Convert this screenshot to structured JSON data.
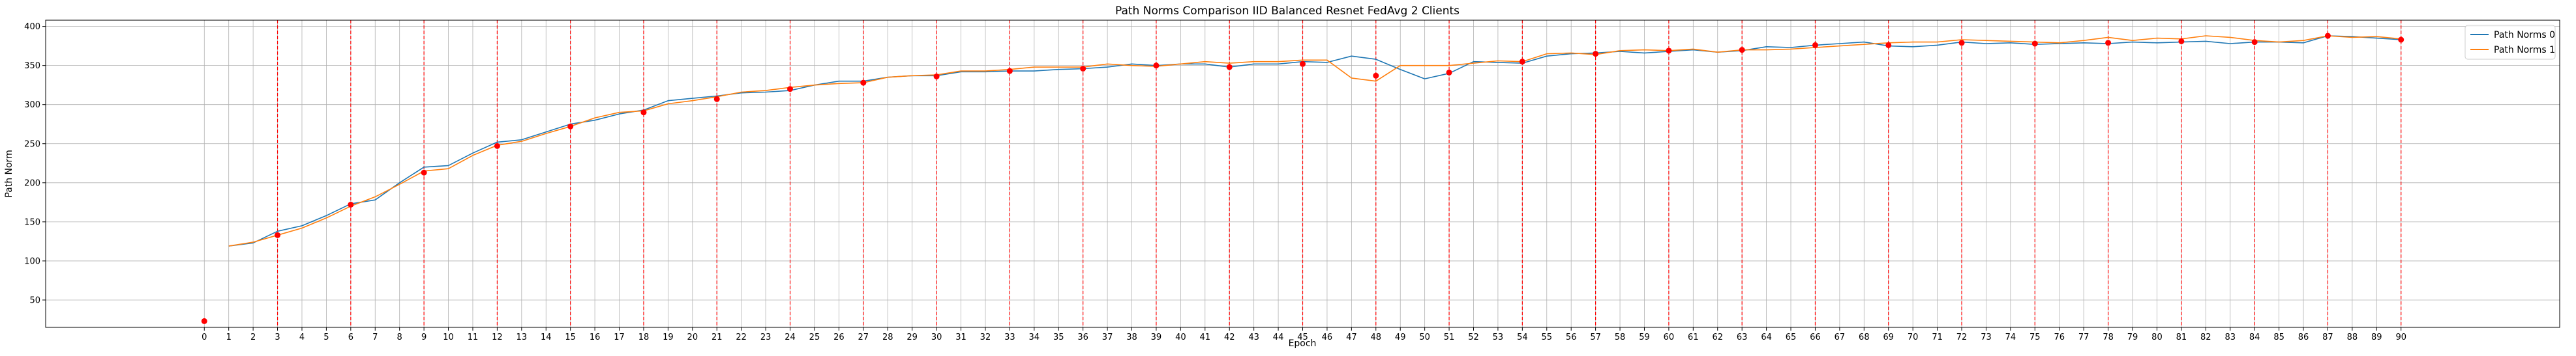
{
  "chart_data": {
    "type": "line",
    "title": "Path Norms Comparison IID Balanced Resnet FedAvg 2 Clients",
    "xlabel": "Epoch",
    "ylabel": "Path Norm",
    "xlim": [
      -6.5,
      96.5
    ],
    "ylim": [
      15,
      408
    ],
    "xticks": [
      0,
      1,
      2,
      3,
      4,
      5,
      6,
      7,
      8,
      9,
      10,
      11,
      12,
      13,
      14,
      15,
      16,
      17,
      18,
      19,
      20,
      21,
      22,
      23,
      24,
      25,
      26,
      27,
      28,
      29,
      30,
      31,
      32,
      33,
      34,
      35,
      36,
      37,
      38,
      39,
      40,
      41,
      42,
      43,
      44,
      45,
      46,
      47,
      48,
      49,
      50,
      51,
      52,
      53,
      54,
      55,
      56,
      57,
      58,
      59,
      60,
      61,
      62,
      63,
      64,
      65,
      66,
      67,
      68,
      69,
      70,
      71,
      72,
      73,
      74,
      75,
      76,
      77,
      78,
      79,
      80,
      81,
      82,
      83,
      84,
      85,
      86,
      87,
      88,
      89,
      90
    ],
    "yticks": [
      50,
      100,
      150,
      200,
      250,
      300,
      350,
      400
    ],
    "grid": true,
    "legend_position": "top-right",
    "series": [
      {
        "name": "Path Norms 0",
        "color": "#1f77b4",
        "x": [
          1,
          2,
          3,
          4,
          5,
          6,
          7,
          8,
          9,
          10,
          11,
          12,
          13,
          14,
          15,
          16,
          17,
          18,
          19,
          20,
          21,
          22,
          23,
          24,
          25,
          26,
          27,
          28,
          29,
          30,
          31,
          32,
          33,
          34,
          35,
          36,
          37,
          38,
          39,
          40,
          41,
          42,
          43,
          44,
          45,
          46,
          47,
          48,
          49,
          50,
          51,
          52,
          53,
          54,
          55,
          56,
          57,
          58,
          59,
          60,
          61,
          62,
          63,
          64,
          65,
          66,
          67,
          68,
          69,
          70,
          71,
          72,
          73,
          74,
          75,
          76,
          77,
          78,
          79,
          80,
          81,
          82,
          83,
          84,
          85,
          86,
          87,
          88,
          89,
          90
        ],
        "values": [
          119,
          123,
          138,
          145,
          158,
          173,
          178,
          200,
          220,
          222,
          238,
          252,
          255,
          265,
          275,
          280,
          288,
          293,
          305,
          308,
          311,
          315,
          316,
          318,
          325,
          330,
          330,
          335,
          337,
          337,
          342,
          342,
          343,
          343,
          345,
          346,
          348,
          352,
          350,
          352,
          352,
          348,
          352,
          352,
          355,
          354,
          362,
          358,
          345,
          333,
          340,
          355,
          354,
          353,
          362,
          365,
          366,
          368,
          366,
          368,
          370,
          367,
          369,
          374,
          373,
          376,
          378,
          380,
          375,
          374,
          376,
          380,
          378,
          379,
          377,
          378,
          379,
          378,
          380,
          379,
          380,
          381,
          378,
          380,
          380,
          379,
          388,
          387,
          385,
          383
        ]
      },
      {
        "name": "Path Norms 1",
        "color": "#ff7f0e",
        "x": [
          1,
          2,
          3,
          4,
          5,
          6,
          7,
          8,
          9,
          10,
          11,
          12,
          13,
          14,
          15,
          16,
          17,
          18,
          19,
          20,
          21,
          22,
          23,
          24,
          25,
          26,
          27,
          28,
          29,
          30,
          31,
          32,
          33,
          34,
          35,
          36,
          37,
          38,
          39,
          40,
          41,
          42,
          43,
          44,
          45,
          46,
          47,
          48,
          49,
          50,
          51,
          52,
          53,
          54,
          55,
          56,
          57,
          58,
          59,
          60,
          61,
          62,
          63,
          64,
          65,
          66,
          67,
          68,
          69,
          70,
          71,
          72,
          73,
          74,
          75,
          76,
          77,
          78,
          79,
          80,
          81,
          82,
          83,
          84,
          85,
          86,
          87,
          88,
          89,
          90
        ],
        "values": [
          119,
          124,
          133,
          142,
          155,
          170,
          182,
          198,
          215,
          218,
          235,
          248,
          253,
          263,
          272,
          283,
          290,
          292,
          301,
          305,
          310,
          316,
          318,
          322,
          325,
          327,
          328,
          335,
          337,
          338,
          343,
          343,
          345,
          348,
          348,
          348,
          352,
          350,
          349,
          352,
          355,
          353,
          355,
          355,
          357,
          357,
          334,
          330,
          350,
          350,
          350,
          353,
          356,
          355,
          365,
          366,
          364,
          369,
          370,
          369,
          371,
          367,
          370,
          370,
          371,
          373,
          375,
          377,
          379,
          380,
          380,
          383,
          382,
          381,
          380,
          379,
          382,
          386,
          382,
          385,
          384,
          388,
          386,
          382,
          380,
          382,
          388,
          386,
          387,
          384
        ]
      }
    ],
    "markers": {
      "color": "#ff0000",
      "x": [
        0,
        3,
        6,
        9,
        12,
        15,
        18,
        21,
        24,
        27,
        30,
        33,
        36,
        39,
        42,
        45,
        48,
        51,
        54,
        57,
        60,
        63,
        66,
        69,
        72,
        75,
        78,
        81,
        84,
        87,
        90
      ],
      "values": [
        23,
        133,
        172,
        213,
        247,
        272,
        290,
        307,
        320,
        328,
        336,
        343,
        346,
        350,
        348,
        352,
        337,
        341,
        355,
        365,
        369,
        370,
        376,
        376,
        379,
        378,
        379,
        381,
        380,
        388,
        383
      ]
    },
    "vlines": {
      "color": "#ff0000",
      "x": [
        3,
        6,
        9,
        12,
        15,
        18,
        21,
        24,
        27,
        30,
        33,
        36,
        39,
        42,
        45,
        48,
        51,
        54,
        57,
        60,
        63,
        66,
        69,
        72,
        75,
        78,
        81,
        84,
        87,
        90
      ]
    }
  }
}
